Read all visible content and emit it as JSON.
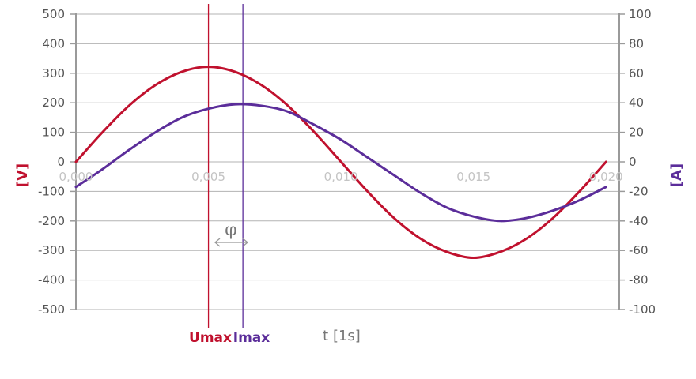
{
  "chart_data": {
    "type": "line",
    "title": "",
    "xlabel": "t [1s]",
    "ylabel_left": "[V]",
    "ylabel_right": "[A]",
    "xlim": [
      0,
      0.0205
    ],
    "ylim_left": [
      -500,
      500
    ],
    "ylim_right": [
      -100,
      100
    ],
    "grid": true,
    "x_ticks": [
      "0,000",
      "0,005",
      "0,010",
      "0,015",
      "0,020"
    ],
    "x_tick_values": [
      0,
      0.005,
      0.01,
      0.015,
      0.02
    ],
    "y_left_ticks": [
      500,
      400,
      300,
      200,
      100,
      0,
      -100,
      -200,
      -300,
      -400,
      -500
    ],
    "y_right_ticks": [
      100,
      80,
      60,
      40,
      20,
      0,
      -20,
      -40,
      -60,
      -80,
      -100
    ],
    "series": [
      {
        "name": "U",
        "axis": "left",
        "color": "#c0112e",
        "x": [
          0,
          0.001,
          0.002,
          0.003,
          0.004,
          0.005,
          0.006,
          0.007,
          0.008,
          0.009,
          0.01,
          0.011,
          0.012,
          0.013,
          0.014,
          0.015,
          0.016,
          0.017,
          0.018,
          0.019,
          0.02
        ],
        "values": [
          0,
          100,
          190,
          260,
          305,
          322,
          305,
          260,
          190,
          100,
          0,
          -100,
          -190,
          -260,
          -305,
          -325,
          -305,
          -260,
          -190,
          -100,
          0
        ]
      },
      {
        "name": "I",
        "axis": "right",
        "color": "#5b2d9a",
        "x": [
          0,
          0.001,
          0.002,
          0.003,
          0.004,
          0.005,
          0.006,
          0.007,
          0.008,
          0.009,
          0.01,
          0.011,
          0.012,
          0.013,
          0.014,
          0.015,
          0.016,
          0.017,
          0.018,
          0.019,
          0.02
        ],
        "values": [
          -17,
          -5,
          8,
          20,
          30,
          36,
          39,
          38,
          34,
          25,
          15,
          3,
          -9,
          -21,
          -31,
          -37,
          -40,
          -38,
          -33,
          -26,
          -17
        ]
      }
    ],
    "markers": [
      {
        "label": "Umax",
        "x": 0.005,
        "color": "#c0112e"
      },
      {
        "label": "Imax",
        "x": 0.0063,
        "color": "#5b2d9a"
      }
    ],
    "annotation": {
      "label": "φ",
      "x_from": 0.005,
      "x_to": 0.0063
    }
  }
}
